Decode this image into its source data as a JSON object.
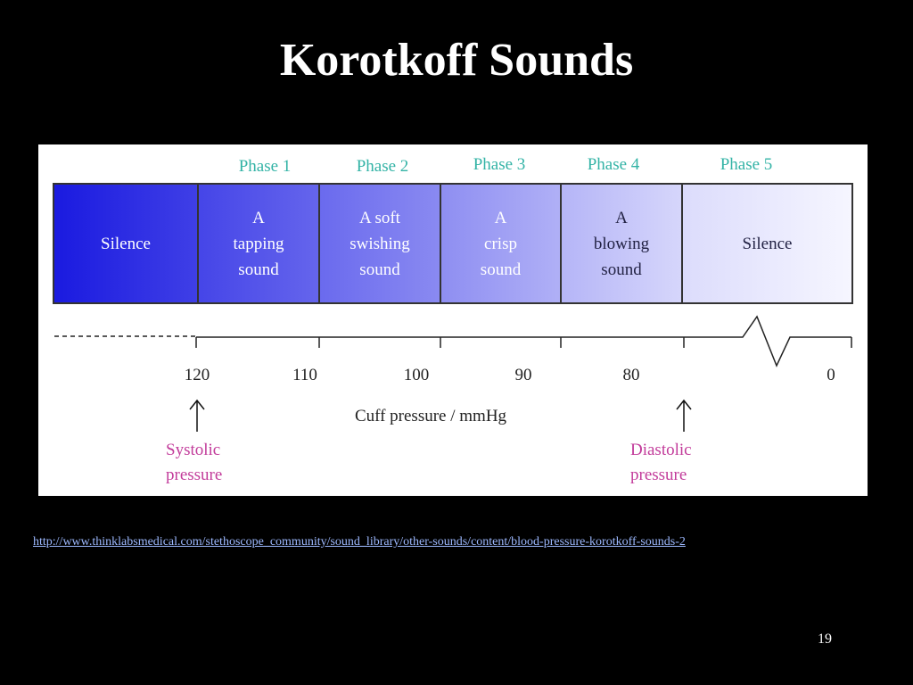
{
  "slide": {
    "title": "Korotkoff Sounds",
    "source_url": "http://www.thinklabsmedical.com/stethoscope_community/sound_library/other-sounds/content/blood-pressure-korotkoff-sounds-2",
    "page_number": "19"
  },
  "diagram": {
    "phases": [
      "Phase 1",
      "Phase 2",
      "Phase 3",
      "Phase 4",
      "Phase 5"
    ],
    "cells": [
      {
        "lines": [
          "Silence"
        ],
        "color_left": "#1a1ae0",
        "color_right": "#3f3fe6"
      },
      {
        "lines": [
          "A",
          "tapping",
          "sound"
        ],
        "color_left": "#4545e8",
        "color_right": "#6565ec"
      },
      {
        "lines": [
          "A soft",
          "swishing",
          "sound"
        ],
        "color_left": "#6a6aee",
        "color_right": "#8a8af1"
      },
      {
        "lines": [
          "A",
          "crisp",
          "sound"
        ],
        "color_left": "#8e8ef2",
        "color_right": "#b0b0f6"
      },
      {
        "lines": [
          "A",
          "blowing",
          "sound"
        ],
        "color_left": "#b5b5f7",
        "color_right": "#d6d6fb"
      },
      {
        "lines": [
          "Silence"
        ],
        "color_left": "#dcdcfc",
        "color_right": "#f6f6ff"
      }
    ],
    "ticks": [
      "120",
      "110",
      "100",
      "90",
      "80",
      "0"
    ],
    "axis_title": "Cuff pressure / mmHg",
    "markers": {
      "systolic": [
        "Systolic",
        "pressure"
      ],
      "diastolic": [
        "Diastolic",
        "pressure"
      ]
    }
  }
}
